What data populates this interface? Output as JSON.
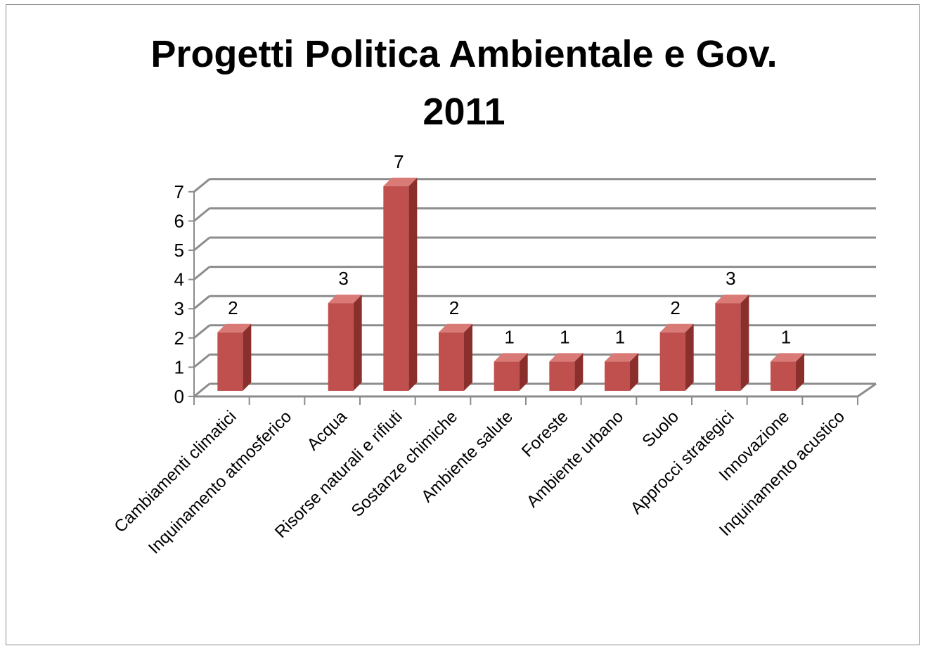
{
  "chart_data": {
    "type": "bar",
    "title": [
      "Progetti Politica Ambientale e Gov.",
      "2011"
    ],
    "categories": [
      "Cambiamenti climatici",
      "Inquinamento atmosferico",
      "Acqua",
      "Risorse naturali e rifiuti",
      "Sostanze chimiche",
      "Ambiente salute",
      "Foreste",
      "Ambiente urbano",
      "Suolo",
      "Approcci strategici",
      "Innovazione",
      "Inquinamento acustico"
    ],
    "values": [
      2,
      0,
      3,
      7,
      2,
      1,
      1,
      1,
      2,
      3,
      1,
      0
    ],
    "data_labels": [
      "2",
      "",
      "3",
      "7",
      "2",
      "1",
      "1",
      "1",
      "2",
      "3",
      "1",
      ""
    ],
    "ylim": [
      0,
      7
    ],
    "yticks": [
      "0",
      "1",
      "2",
      "3",
      "4",
      "5",
      "6",
      "7"
    ],
    "grid": true,
    "style": "3d-column",
    "colors": {
      "bar_front": "#c0504d",
      "bar_side": "#8b2f2c",
      "bar_top": "#d97a77",
      "grid": "#8c8c8c"
    }
  }
}
